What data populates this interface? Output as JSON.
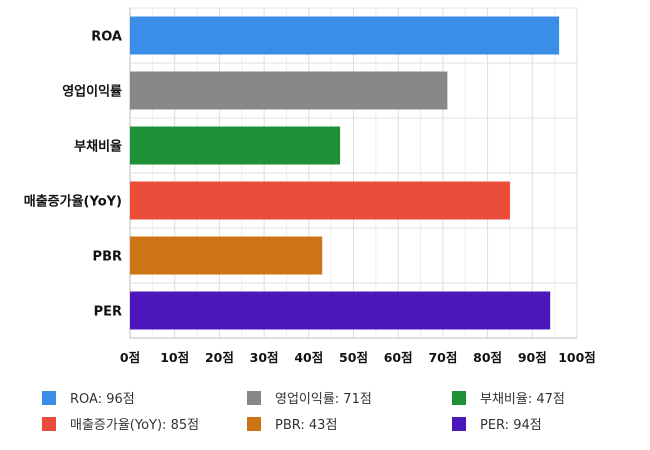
{
  "chart_data": {
    "type": "bar",
    "orientation": "horizontal",
    "categories": [
      "ROA",
      "영업이익률",
      "부채비율",
      "매출증가율(YoY)",
      "PBR",
      "PER"
    ],
    "values": [
      96,
      71,
      47,
      85,
      43,
      94
    ],
    "colors": [
      "#3b8ee8",
      "#888888",
      "#1e9138",
      "#ec4d3a",
      "#cd7417",
      "#4c18bc"
    ],
    "xlim": [
      0,
      100
    ],
    "xticks": [
      "0점",
      "10점",
      "20점",
      "30점",
      "40점",
      "50점",
      "60점",
      "70점",
      "80점",
      "90점",
      "100점"
    ],
    "grid": true,
    "legend_position": "bottom",
    "legend": [
      "ROA: 96점",
      "영업이익률: 71점",
      "부채비율: 47점",
      "매출증가율(YoY): 85점",
      "PBR: 43점",
      "PER: 94점"
    ]
  }
}
